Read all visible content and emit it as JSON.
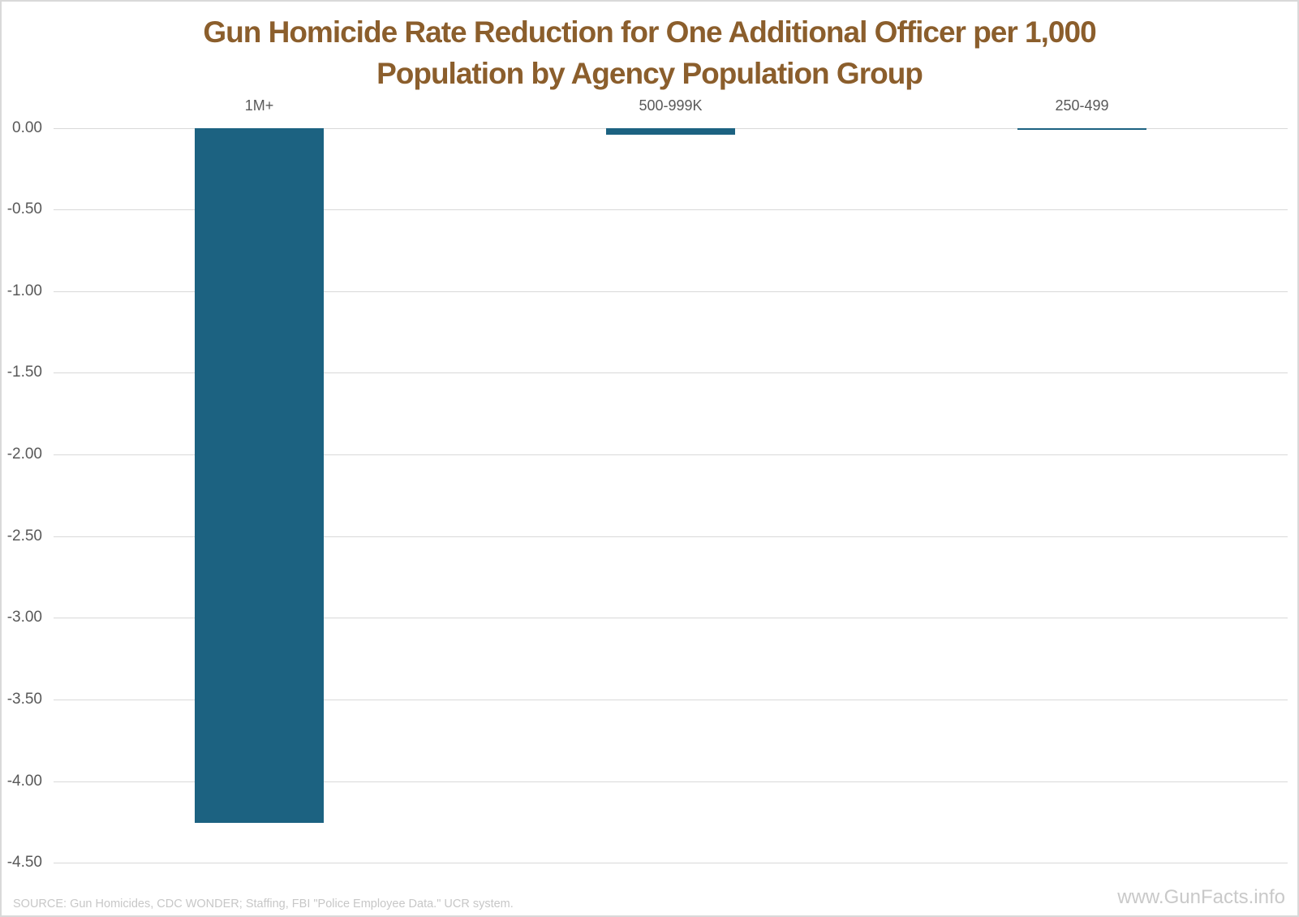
{
  "page": {
    "title_line1": "Gun Homicide Rate Reduction for One Additional Officer per 1,000",
    "title_line2": "Population by Agency Population Group",
    "source": "SOURCE: Gun Homicides, CDC WONDER; Staffing, FBI \"Police Employee Data.\" UCR system.",
    "watermark": "www.GunFacts.info"
  },
  "chart_data": {
    "type": "bar",
    "title": "Gun Homicide Rate Reduction for One Additional Officer per 1,000 Population by Agency Population Group",
    "categories": [
      "1M+",
      "500-999K",
      "250-499"
    ],
    "values": [
      -4.25,
      -0.04,
      -0.01
    ],
    "xlabel": "",
    "ylabel": "",
    "ylim": [
      -4.5,
      0
    ],
    "y_ticks": [
      "0.00",
      "-0.50",
      "-1.00",
      "-1.50",
      "-2.00",
      "-2.50",
      "-3.00",
      "-3.50",
      "-4.00",
      "-4.50"
    ],
    "grid": true,
    "legend_position": "none",
    "category_labels_position": "top",
    "colors": {
      "bar": "#1C6281",
      "title": "#8B5E2C",
      "axis_labels": "#595959",
      "gridline": "#D9D9D9",
      "source_text": "#C7C7C7",
      "watermark_text": "#C9C9C9",
      "border": "#D9D9D9",
      "background": "#FFFFFF"
    }
  }
}
